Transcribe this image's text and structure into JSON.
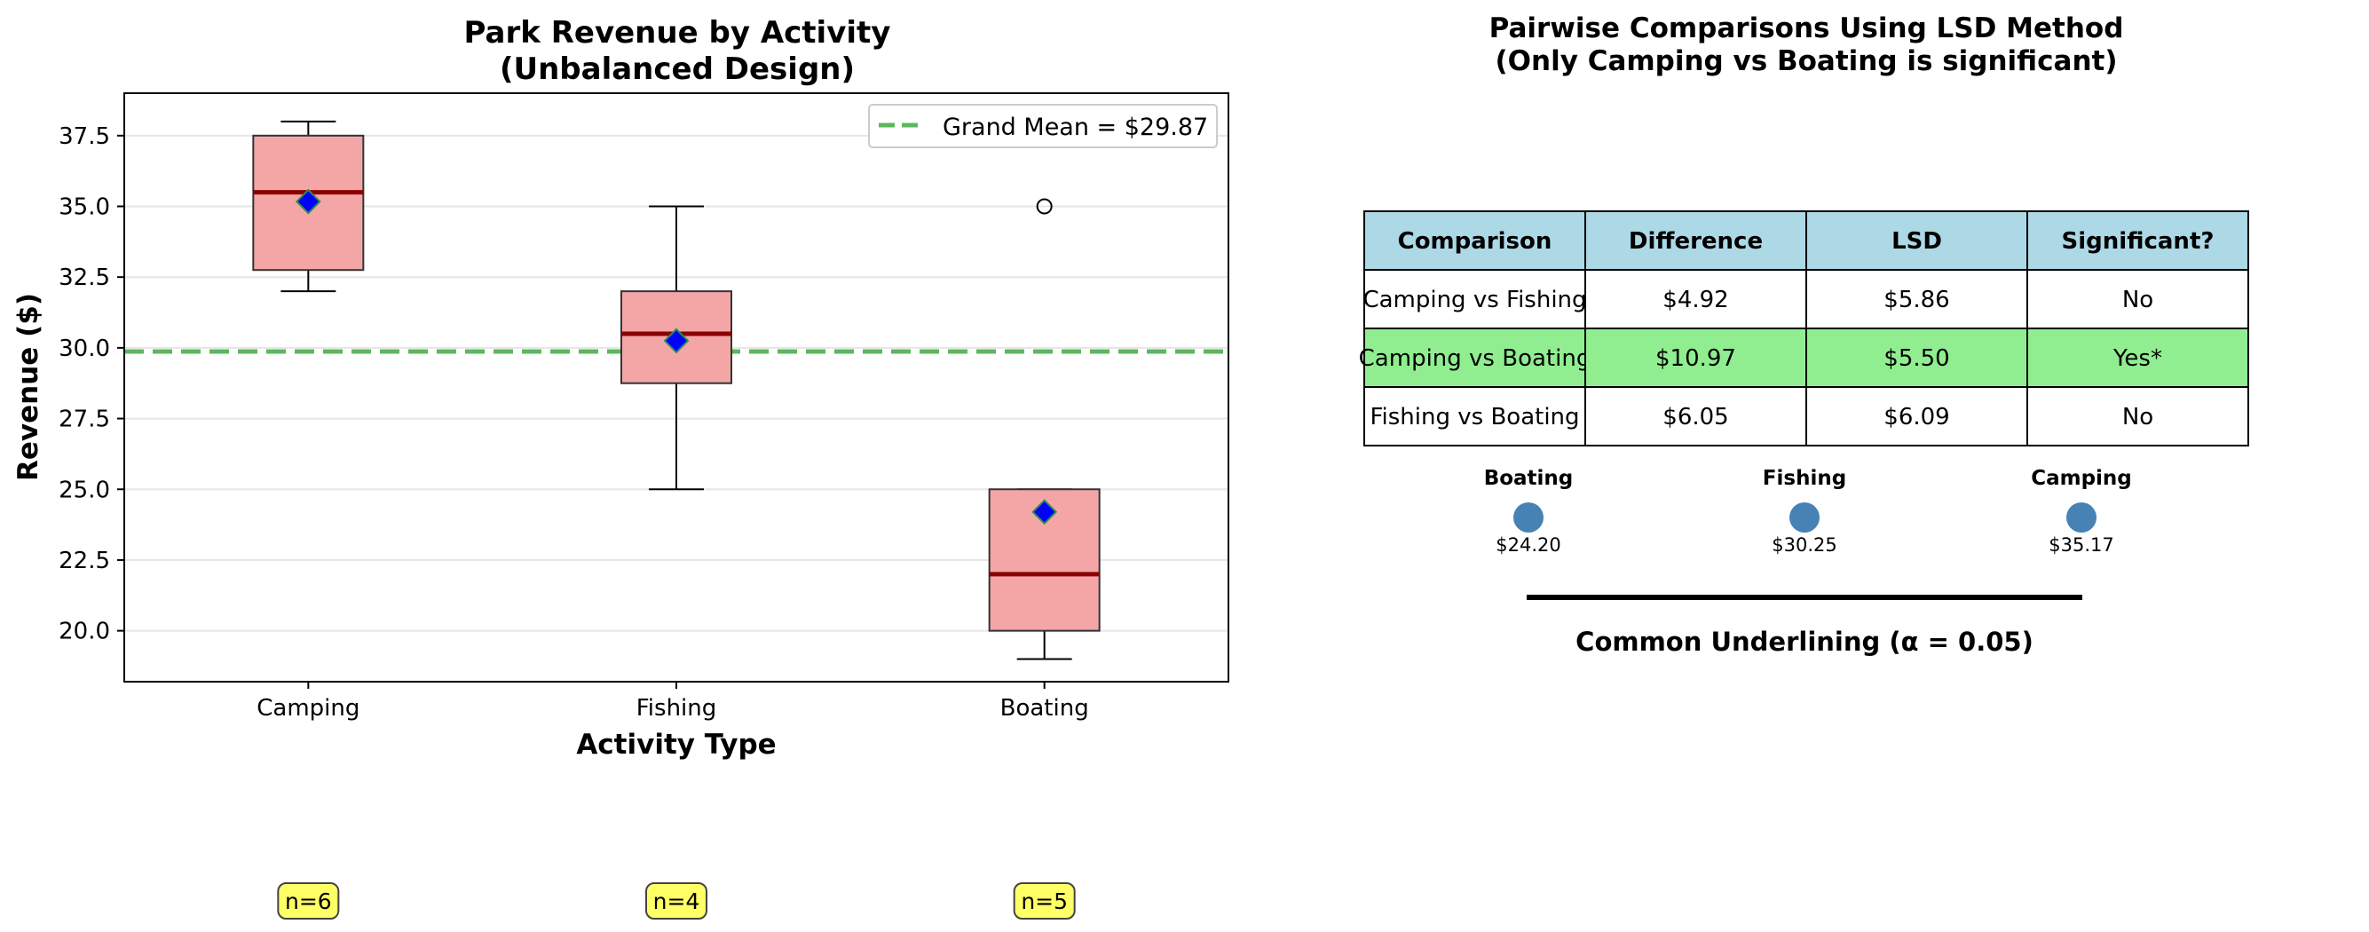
{
  "chart_data": [
    {
      "type": "box",
      "title": "Park Revenue by Activity",
      "subtitle": "(Unbalanced Design)",
      "xlabel": "Activity Type",
      "ylabel": "Revenue ($)",
      "ylim": [
        18.2,
        39.0
      ],
      "yticks": [
        "20.0",
        "22.5",
        "25.0",
        "27.5",
        "30.0",
        "32.5",
        "35.0",
        "37.5"
      ],
      "yticks_values": [
        20.0,
        22.5,
        25.0,
        27.5,
        30.0,
        32.5,
        35.0,
        37.5
      ],
      "grid": "horizontal",
      "legend_placement": "top-right",
      "categories": [
        "Camping",
        "Fishing",
        "Boating"
      ],
      "boxes": [
        {
          "name": "Camping",
          "whisker_low": 32.0,
          "q1": 32.75,
          "median": 35.5,
          "q3": 37.5,
          "whisker_high": 38.0,
          "mean": 35.17,
          "outliers": []
        },
        {
          "name": "Fishing",
          "whisker_low": 25.0,
          "q1": 28.75,
          "median": 30.5,
          "q3": 32.0,
          "whisker_high": 35.0,
          "mean": 30.25,
          "outliers": []
        },
        {
          "name": "Boating",
          "whisker_low": 19.0,
          "q1": 20.0,
          "median": 22.0,
          "q3": 25.0,
          "whisker_high": 25.0,
          "mean": 24.2,
          "outliers": [
            35.0
          ]
        }
      ],
      "grand_mean": {
        "label": "Grand Mean = $29.87",
        "value": 29.87
      },
      "sample_sizes": [
        "n=6",
        "n=4",
        "n=5"
      ],
      "colors": {
        "box_fill": "#f4a6a6",
        "median": "#8b0000",
        "mean_marker": "#0000ff",
        "mean_marker_edge": "#2e8b57",
        "grand_mean_line": "#5cb85c",
        "badge_fill": "#ffff66"
      }
    },
    {
      "type": "table",
      "title": "Pairwise Comparisons Using LSD Method",
      "subtitle": "(Only Camping vs Boating is significant)",
      "columns": [
        "Comparison",
        "Difference",
        "LSD",
        "Significant?"
      ],
      "rows": [
        {
          "cells": [
            "Camping vs Fishing",
            "$4.92",
            "$5.86",
            "No"
          ],
          "highlight": false
        },
        {
          "cells": [
            "Camping vs Boating",
            "$10.97",
            "$5.50",
            "Yes*"
          ],
          "highlight": true
        },
        {
          "cells": [
            "Fishing vs Boating",
            "$6.05",
            "$6.09",
            "No"
          ],
          "highlight": false
        }
      ],
      "colors": {
        "header_fill": "#add8e6",
        "highlight_fill": "#90ee90"
      }
    },
    {
      "type": "scatter",
      "caption": "Common Underlining (α = 0.05)",
      "points": [
        {
          "name": "Boating",
          "value_label": "$24.20",
          "value": 24.2
        },
        {
          "name": "Fishing",
          "value_label": "$30.25",
          "value": 30.25
        },
        {
          "name": "Camping",
          "value_label": "$35.17",
          "value": 35.17
        }
      ],
      "colors": {
        "point": "#4682b4"
      }
    }
  ]
}
